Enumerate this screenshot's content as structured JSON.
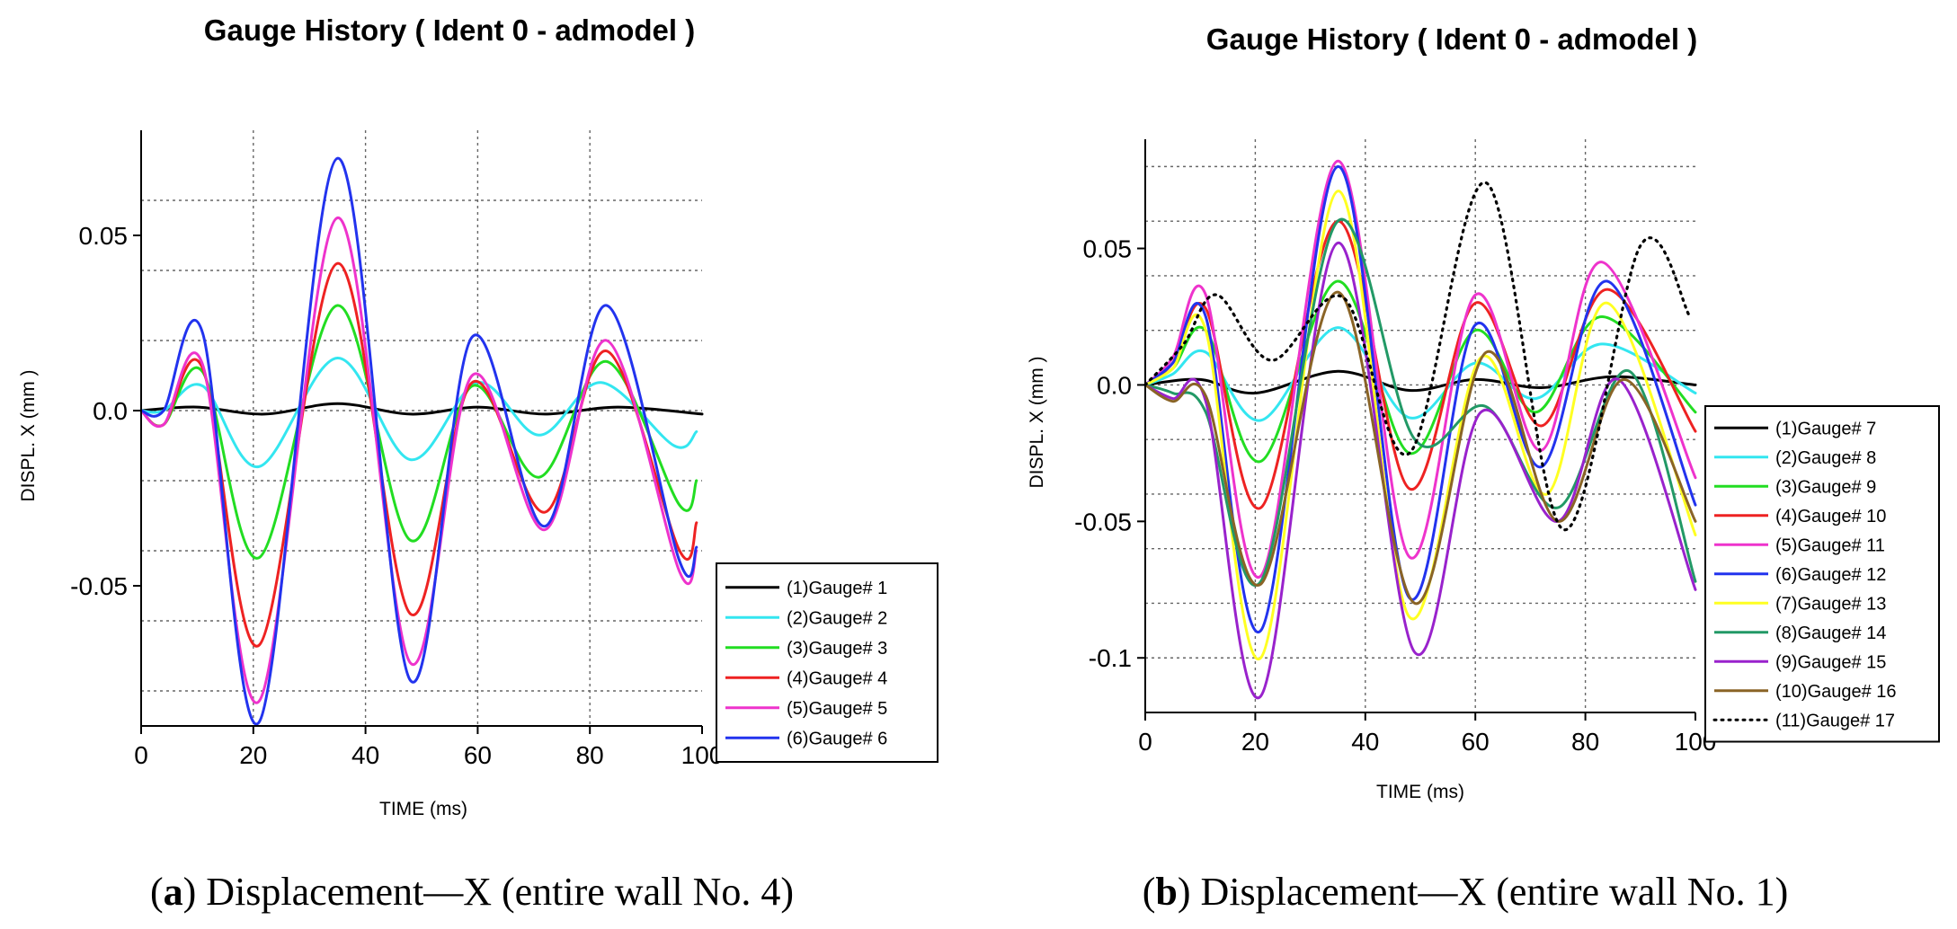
{
  "chart_data": [
    {
      "type": "line",
      "title": "Gauge History ( Ident 0 - admodel )",
      "xlabel": "TIME (ms)",
      "ylabel": "DISPL. X (mm )",
      "xlim": [
        0,
        100
      ],
      "ylim": [
        -0.09,
        0.08
      ],
      "xticks": [
        0,
        20,
        40,
        60,
        80,
        100
      ],
      "xtick_labels": [
        "0",
        "20",
        "40",
        "60",
        "80",
        "100"
      ],
      "yticks": [
        -0.05,
        0.0,
        0.05
      ],
      "ytick_labels": [
        "-0.05",
        "0.0",
        "0.05"
      ],
      "caption": {
        "letter": "a",
        "text": ") Displacement—X (entire wall No. 4)"
      },
      "series": [
        {
          "name": "(1)Gauge#  1",
          "color": "#000000",
          "dash": "solid",
          "points": [
            [
              0,
              0
            ],
            [
              10,
              0.001
            ],
            [
              22,
              -0.001
            ],
            [
              35,
              0.002
            ],
            [
              48,
              -0.001
            ],
            [
              60,
              0.001
            ],
            [
              72,
              -0.001
            ],
            [
              85,
              0.001
            ],
            [
              100,
              -0.001
            ]
          ]
        },
        {
          "name": "(2)Gauge#  2",
          "color": "#33e6f0",
          "dash": "solid",
          "points": [
            [
              0,
              0
            ],
            [
              4,
              0
            ],
            [
              11,
              0.007
            ],
            [
              21,
              -0.016
            ],
            [
              35,
              0.015
            ],
            [
              48,
              -0.014
            ],
            [
              60,
              0.008
            ],
            [
              71,
              -0.007
            ],
            [
              82,
              0.008
            ],
            [
              95,
              -0.01
            ],
            [
              99,
              -0.006
            ]
          ]
        },
        {
          "name": "(3)Gauge#  3",
          "color": "#22dd22",
          "dash": "solid",
          "points": [
            [
              0,
              0
            ],
            [
              4,
              -0.004
            ],
            [
              11,
              0.011
            ],
            [
              21,
              -0.042
            ],
            [
              35,
              0.03
            ],
            [
              48,
              -0.037
            ],
            [
              59,
              0.007
            ],
            [
              71,
              -0.019
            ],
            [
              83,
              0.014
            ],
            [
              96,
              -0.027
            ],
            [
              99,
              -0.02
            ]
          ]
        },
        {
          "name": "(4)Gauge#  4",
          "color": "#ee2222",
          "dash": "solid",
          "points": [
            [
              0,
              0
            ],
            [
              4,
              -0.004
            ],
            [
              11,
              0.012
            ],
            [
              21,
              -0.067
            ],
            [
              35,
              0.042
            ],
            [
              48,
              -0.058
            ],
            [
              59,
              0.008
            ],
            [
              72,
              -0.029
            ],
            [
              83,
              0.017
            ],
            [
              96,
              -0.04
            ],
            [
              99,
              -0.032
            ]
          ]
        },
        {
          "name": "(5)Gauge#  5",
          "color": "#ee33cc",
          "dash": "solid",
          "points": [
            [
              0,
              0
            ],
            [
              4,
              -0.004
            ],
            [
              11,
              0.013
            ],
            [
              21,
              -0.083
            ],
            [
              35,
              0.055
            ],
            [
              48,
              -0.072
            ],
            [
              59,
              0.01
            ],
            [
              72,
              -0.034
            ],
            [
              83,
              0.02
            ],
            [
              96,
              -0.046
            ],
            [
              99,
              -0.04
            ]
          ]
        },
        {
          "name": "(6)Gauge#  6",
          "color": "#2233ee",
          "dash": "solid",
          "points": [
            [
              0,
              0
            ],
            [
              4,
              0
            ],
            [
              11,
              0.022
            ],
            [
              21,
              -0.089
            ],
            [
              35,
              0.072
            ],
            [
              48,
              -0.077
            ],
            [
              59,
              0.021
            ],
            [
              72,
              -0.033
            ],
            [
              83,
              0.03
            ],
            [
              96,
              -0.043
            ],
            [
              99,
              -0.039
            ]
          ]
        }
      ]
    },
    {
      "type": "line",
      "title": "Gauge History ( Ident 0 - admodel )",
      "xlabel": "TIME (ms)",
      "ylabel": "DISPL. X (mm )",
      "xlim": [
        0,
        100
      ],
      "ylim": [
        -0.12,
        0.09
      ],
      "xticks": [
        0,
        20,
        40,
        60,
        80,
        100
      ],
      "xtick_labels": [
        "0",
        "20",
        "40",
        "60",
        "80",
        "100"
      ],
      "yticks": [
        -0.1,
        -0.05,
        0.0,
        0.05
      ],
      "ytick_labels": [
        "-0.1",
        "-0.05",
        "0.0",
        "0.05"
      ],
      "caption": {
        "letter": "b",
        "text": ") Displacement—X (entire wall No. 1)"
      },
      "series": [
        {
          "name": "(1)Gauge#  7",
          "color": "#000000",
          "dash": "solid",
          "points": [
            [
              0,
              0
            ],
            [
              10,
              0.002
            ],
            [
              20,
              -0.003
            ],
            [
              35,
              0.005
            ],
            [
              48,
              -0.002
            ],
            [
              60,
              0.002
            ],
            [
              72,
              -0.001
            ],
            [
              85,
              0.003
            ],
            [
              100,
              0
            ]
          ]
        },
        {
          "name": "(2)Gauge#  8",
          "color": "#33e6f0",
          "dash": "solid",
          "points": [
            [
              0,
              0
            ],
            [
              5,
              0.004
            ],
            [
              11,
              0.012
            ],
            [
              21,
              -0.013
            ],
            [
              35,
              0.021
            ],
            [
              48,
              -0.012
            ],
            [
              60,
              0.008
            ],
            [
              71,
              -0.005
            ],
            [
              83,
              0.015
            ],
            [
              100,
              -0.003
            ]
          ]
        },
        {
          "name": "(3)Gauge#  9",
          "color": "#22dd22",
          "dash": "solid",
          "points": [
            [
              0,
              0
            ],
            [
              5,
              0.006
            ],
            [
              11,
              0.02
            ],
            [
              21,
              -0.028
            ],
            [
              35,
              0.038
            ],
            [
              48,
              -0.025
            ],
            [
              60,
              0.02
            ],
            [
              71,
              -0.01
            ],
            [
              83,
              0.025
            ],
            [
              100,
              -0.01
            ]
          ]
        },
        {
          "name": "(4)Gauge# 10",
          "color": "#ee2222",
          "dash": "solid",
          "points": [
            [
              0,
              0
            ],
            [
              5,
              0.008
            ],
            [
              11,
              0.028
            ],
            [
              21,
              -0.045
            ],
            [
              35,
              0.06
            ],
            [
              48,
              -0.038
            ],
            [
              60,
              0.03
            ],
            [
              72,
              -0.015
            ],
            [
              84,
              0.035
            ],
            [
              100,
              -0.017
            ]
          ]
        },
        {
          "name": "(5)Gauge# 11",
          "color": "#ee33cc",
          "dash": "solid",
          "points": [
            [
              0,
              0
            ],
            [
              5,
              0.01
            ],
            [
              11,
              0.033
            ],
            [
              21,
              -0.07
            ],
            [
              35,
              0.082
            ],
            [
              48,
              -0.063
            ],
            [
              60,
              0.033
            ],
            [
              72,
              -0.024
            ],
            [
              83,
              0.045
            ],
            [
              100,
              -0.034
            ]
          ]
        },
        {
          "name": "(6)Gauge# 12",
          "color": "#2233ee",
          "dash": "solid",
          "points": [
            [
              0,
              0
            ],
            [
              5,
              0.008
            ],
            [
              11,
              0.025
            ],
            [
              21,
              -0.09
            ],
            [
              35,
              0.08
            ],
            [
              48,
              -0.078
            ],
            [
              60,
              0.022
            ],
            [
              72,
              -0.03
            ],
            [
              84,
              0.038
            ],
            [
              100,
              -0.044
            ]
          ]
        },
        {
          "name": "(7)Gauge# 13",
          "color": "#ffff22",
          "dash": "solid",
          "points": [
            [
              0,
              0
            ],
            [
              5,
              0.006
            ],
            [
              11,
              0.02
            ],
            [
              21,
              -0.1
            ],
            [
              35,
              0.071
            ],
            [
              48,
              -0.085
            ],
            [
              61,
              0.01
            ],
            [
              73,
              -0.04
            ],
            [
              84,
              0.03
            ],
            [
              100,
              -0.055
            ]
          ]
        },
        {
          "name": "(8)Gauge# 14",
          "color": "#229966",
          "dash": "solid",
          "points": [
            [
              0,
              0
            ],
            [
              5,
              -0.003
            ],
            [
              11,
              -0.01
            ],
            [
              21,
              -0.072
            ],
            [
              35,
              0.06
            ],
            [
              49,
              -0.02
            ],
            [
              62,
              -0.008
            ],
            [
              75,
              -0.045
            ],
            [
              88,
              0.005
            ],
            [
              100,
              -0.072
            ]
          ]
        },
        {
          "name": "(9)Gauge# 15",
          "color": "#9922cc",
          "dash": "solid",
          "points": [
            [
              0,
              0
            ],
            [
              5,
              -0.005
            ],
            [
              11,
              -0.006
            ],
            [
              21,
              -0.114
            ],
            [
              35,
              0.052
            ],
            [
              49,
              -0.098
            ],
            [
              61,
              -0.01
            ],
            [
              75,
              -0.05
            ],
            [
              86,
              0.002
            ],
            [
              100,
              -0.075
            ]
          ]
        },
        {
          "name": "(10)Gauge# 16",
          "color": "#8a6426",
          "dash": "solid",
          "points": [
            [
              0,
              0
            ],
            [
              5,
              -0.006
            ],
            [
              11,
              -0.004
            ],
            [
              21,
              -0.073
            ],
            [
              35,
              0.034
            ],
            [
              49,
              -0.08
            ],
            [
              62,
              0.012
            ],
            [
              75,
              -0.05
            ],
            [
              87,
              0.002
            ],
            [
              100,
              -0.05
            ]
          ]
        },
        {
          "name": "(11)Gauge# 17",
          "color": "#000000",
          "dash": "dotted",
          "points": [
            [
              0,
              0
            ],
            [
              7,
              0.015
            ],
            [
              13,
              0.033
            ],
            [
              23,
              0.009
            ],
            [
              36,
              0.032
            ],
            [
              48,
              -0.025
            ],
            [
              62,
              0.074
            ],
            [
              76,
              -0.053
            ],
            [
              90,
              0.051
            ],
            [
              99,
              0.025
            ]
          ]
        }
      ]
    }
  ]
}
